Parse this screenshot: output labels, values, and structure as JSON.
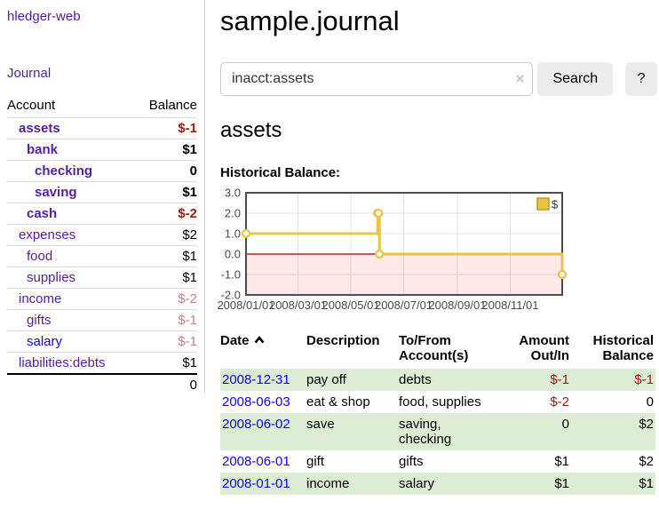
{
  "app": {
    "brand": "hledger-web"
  },
  "nav": {
    "journal": "Journal"
  },
  "sidebar": {
    "columns": {
      "account": "Account",
      "balance": "Balance"
    },
    "accounts": [
      {
        "name": "assets",
        "balance": "$-1",
        "level": 1,
        "bold": true,
        "neg": "strong",
        "link": "purple"
      },
      {
        "name": "bank",
        "balance": "$1",
        "level": 2,
        "bold": true,
        "neg": "none",
        "link": "purple"
      },
      {
        "name": "checking",
        "balance": "0",
        "level": 3,
        "bold": true,
        "neg": "none",
        "link": "purple"
      },
      {
        "name": "saving",
        "balance": "$1",
        "level": 3,
        "bold": true,
        "neg": "none",
        "link": "purple"
      },
      {
        "name": "cash",
        "balance": "$-2",
        "level": 2,
        "bold": true,
        "neg": "strong",
        "link": "purple"
      },
      {
        "name": "expenses",
        "balance": "$2",
        "level": 1,
        "bold": false,
        "neg": "none",
        "link": "purple"
      },
      {
        "name": "food",
        "balance": "$1",
        "level": 2,
        "bold": false,
        "neg": "none",
        "link": "purple"
      },
      {
        "name": "supplies",
        "balance": "$1",
        "level": 2,
        "bold": false,
        "neg": "none",
        "link": "purple"
      },
      {
        "name": "income",
        "balance": "$-2",
        "level": 1,
        "bold": false,
        "neg": "soft",
        "link": "purple"
      },
      {
        "name": "gifts",
        "balance": "$-1",
        "level": 2,
        "bold": false,
        "neg": "soft",
        "link": "purple"
      },
      {
        "name": "salary",
        "balance": "$-1",
        "level": 2,
        "bold": false,
        "neg": "soft",
        "link": "blue"
      },
      {
        "name": "liabilities:debts",
        "balance": "$1",
        "level": 1,
        "bold": false,
        "neg": "none",
        "link": "purple"
      }
    ],
    "total": "0"
  },
  "header": {
    "title": "sample.journal"
  },
  "search": {
    "value": "inacct:assets",
    "clear_icon": "×",
    "button_label": "Search",
    "help_label": "?"
  },
  "account_page": {
    "heading": "assets",
    "chart_title": "Historical Balance:"
  },
  "chart_data": {
    "type": "line",
    "step": true,
    "title": "Historical Balance:",
    "legend": [
      {
        "label": "$",
        "color": "#E8C34A"
      }
    ],
    "legend_position": "top-right",
    "grid": true,
    "ylim": [
      -2,
      3
    ],
    "y_ticks": [
      "3.0",
      "2.0",
      "1.0",
      "0.0",
      "-1.0",
      "-2.0"
    ],
    "y_tick_values": [
      3,
      2,
      1,
      0,
      -1,
      -2
    ],
    "x_range_days": [
      0,
      365
    ],
    "x_ticks": [
      {
        "label": "2008/01/01",
        "day": 0
      },
      {
        "label": "2008/03/01",
        "day": 60
      },
      {
        "label": "2008/05/01",
        "day": 121
      },
      {
        "label": "2008/07/01",
        "day": 182
      },
      {
        "label": "2008/09/01",
        "day": 244
      },
      {
        "label": "2008/11/01",
        "day": 305
      }
    ],
    "series": [
      {
        "name": "$",
        "color": "#E8C34A",
        "points": [
          {
            "date": "2008/01/01",
            "day": 0,
            "value": 1
          },
          {
            "date": "2008/06/01",
            "day": 152,
            "value": 2
          },
          {
            "date": "2008/06/02",
            "day": 153,
            "value": 2
          },
          {
            "date": "2008/06/03",
            "day": 154,
            "value": 0
          },
          {
            "date": "2008/12/31",
            "day": 365,
            "value": -1
          }
        ]
      }
    ],
    "zero_line_color": "#a40000",
    "negative_region_color": "rgba(255,0,0,0.09)",
    "frame_color": "#4d4d4d",
    "gridline_color": "#e2e2e2",
    "tick_label_color": "#4a4a4a"
  },
  "register": {
    "columns": {
      "date": "Date",
      "description": "Description",
      "accounts": "To/From Account(s)",
      "amount": "Amount Out/In",
      "balance": "Historical Balance"
    },
    "sort": {
      "column": "date",
      "direction": "asc"
    },
    "rows": [
      {
        "date": "2008-12-31",
        "description": "pay off",
        "accounts": "debts",
        "amount": "$-1",
        "balance": "$-1",
        "amount_negative": true,
        "balance_negative": true
      },
      {
        "date": "2008-06-03",
        "description": "eat & shop",
        "accounts": "food, supplies",
        "amount": "$-2",
        "balance": "0",
        "amount_negative": true,
        "balance_negative": false
      },
      {
        "date": "2008-06-02",
        "description": "save",
        "accounts": "saving, checking",
        "amount": "0",
        "balance": "$2",
        "amount_negative": false,
        "balance_negative": false
      },
      {
        "date": "2008-06-01",
        "description": "gift",
        "accounts": "gifts",
        "amount": "$1",
        "balance": "$2",
        "amount_negative": false,
        "balance_negative": false
      },
      {
        "date": "2008-01-01",
        "description": "income",
        "accounts": "salary",
        "amount": "$1",
        "balance": "$1",
        "amount_negative": false,
        "balance_negative": false
      }
    ]
  },
  "colors": {
    "link_purple": "#541f93",
    "link_blue": "#0f00e8",
    "negative_strong": "#9e1b10",
    "negative_soft": "#c4827d",
    "row_green": "#ddecd4",
    "chart_line": "#E8C34A",
    "button_bg": "#ececec"
  }
}
